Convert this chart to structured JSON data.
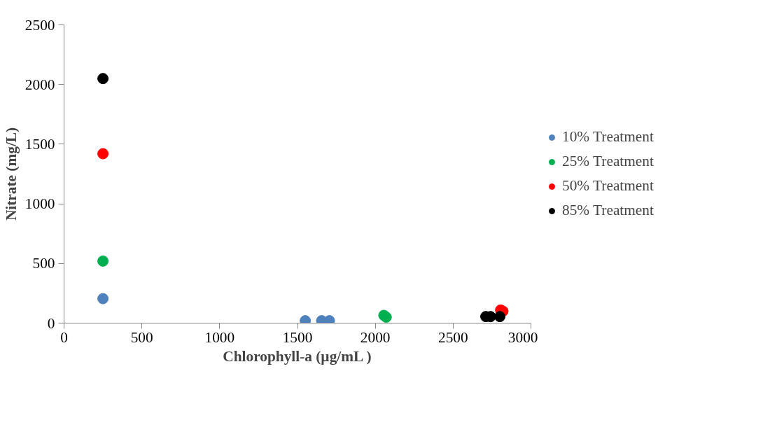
{
  "chart_data": {
    "type": "scatter",
    "xlabel": "Chlorophyll-a (µg/mL )",
    "ylabel": "Nitrate (mg/L)",
    "xlim": [
      0,
      3000
    ],
    "xticks": [
      0,
      500,
      1000,
      1500,
      2000,
      2500,
      3000
    ],
    "ylim": [
      0,
      2500
    ],
    "yticks": [
      0,
      500,
      1000,
      1500,
      2000,
      2500
    ],
    "grid": false,
    "legend": "right",
    "marker": "circle",
    "series": [
      {
        "name": "10% Treatment",
        "color": "#4f81bd",
        "x": [
          250,
          1550,
          1655,
          1705
        ],
        "values": [
          205,
          20,
          20,
          20
        ]
      },
      {
        "name": "25% Treatment",
        "color": "#00b050",
        "x": [
          250,
          2055,
          2070
        ],
        "values": [
          520,
          65,
          50
        ]
      },
      {
        "name": "50% Treatment",
        "color": "#ff0000",
        "x": [
          250,
          2805,
          2820
        ],
        "values": [
          1420,
          110,
          100
        ]
      },
      {
        "name": "85% Treatment",
        "color": "#000000",
        "x": [
          250,
          2710,
          2740,
          2800
        ],
        "values": [
          2050,
          55,
          55,
          55
        ]
      }
    ]
  }
}
